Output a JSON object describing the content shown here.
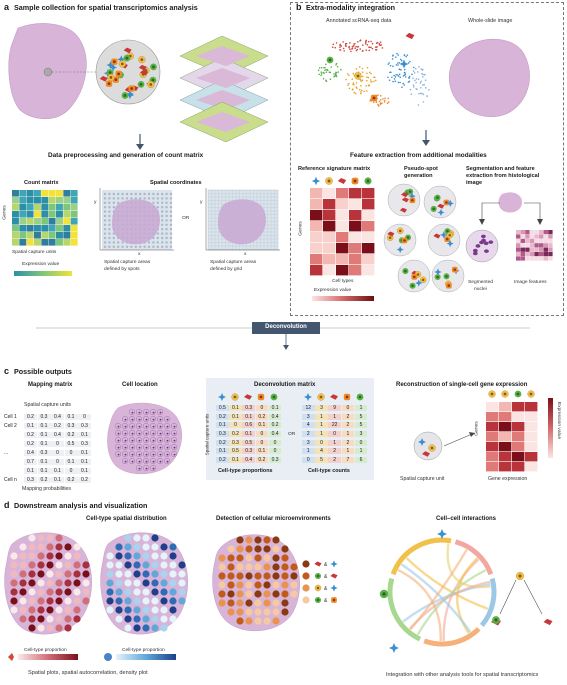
{
  "panel_a": {
    "letter": "a",
    "title": "Sample collection for spatial transcriptomics analysis",
    "step2_title": "Data preprocessing and generation of count matrix",
    "count_matrix_label": "Count matrix",
    "genes_label": "Genes",
    "capture_units_label": "Spatial capture units",
    "expression_value_label": "Expression value",
    "spatial_coords_label": "Spatial coordinates",
    "axis_x": "x",
    "axis_y": "y",
    "or_label": "OR",
    "spots_caption_1": "Spatial capture areas",
    "spots_caption_2": "defined by spots",
    "grid_caption_1": "Spatial capture areas",
    "grid_caption_2": "defined by grid"
  },
  "panel_b": {
    "letter": "b",
    "title": "Extra-modality integration",
    "scrna_label": "Annotated scRNA-seq data",
    "wsi_label": "Whole-slide image",
    "feature_title": "Feature extraction from additional modalities",
    "ref_matrix_label": "Reference signature matrix",
    "genes_label": "Genes",
    "cell_types_label": "Cell types",
    "expression_value_label": "Expression value",
    "pseudo_label_1": "Pseudo-spot",
    "pseudo_label_2": "generation",
    "seg_label_1": "Segmentation and feature",
    "seg_label_2": "extraction from histological",
    "seg_label_3": "image",
    "nuclei_label_1": "Segmented",
    "nuclei_label_2": "nuclei",
    "image_features_label": "Image features"
  },
  "deconvolution_label": "Deconvolution",
  "panel_c": {
    "letter": "c",
    "title": "Possible outputs",
    "mapping_title": "Mapping matrix",
    "mapping_units_label": "Spatial capture units",
    "mapping_rows": [
      {
        "label": "Cell 1",
        "values": [
          "0.2",
          "0.3",
          "0.4",
          "0.1",
          "0"
        ]
      },
      {
        "label": "Cell 2",
        "values": [
          "0.1",
          "0.1",
          "0.2",
          "0.3",
          "0.3"
        ]
      },
      {
        "label": "",
        "values": [
          "0.2",
          "0.1",
          "0.4",
          "0.2",
          "0.1"
        ]
      },
      {
        "label": "",
        "values": [
          "0.2",
          "0.1",
          "0",
          "0.5",
          "0.3"
        ]
      },
      {
        "label": "...",
        "values": [
          "0.4",
          "0.3",
          "0",
          "0",
          "0.1"
        ]
      },
      {
        "label": "",
        "values": [
          "0.7",
          "0.1",
          "0",
          "0.1",
          "0.1"
        ]
      },
      {
        "label": "",
        "values": [
          "0.1",
          "0.1",
          "0.1",
          "0",
          "0.1"
        ]
      },
      {
        "label": "Cell n",
        "values": [
          "0.3",
          "0.2",
          "0.1",
          "0.2",
          "0.2"
        ]
      }
    ],
    "mapping_prob_label": "Mapping probabilities",
    "cell_location_title": "Cell location",
    "decon_matrix_title": "Deconvolution matrix",
    "spatial_units_vert": "Spatial capture units",
    "proportions": [
      [
        "0.5",
        "0.1",
        "0.3",
        "0",
        "0.1"
      ],
      [
        "0.2",
        "0.1",
        "0.1",
        "0.2",
        "0.4"
      ],
      [
        "0.1",
        "0",
        "0.6",
        "0.1",
        "0.2"
      ],
      [
        "0.3",
        "0.2",
        "0.1",
        "0",
        "0.4"
      ],
      [
        "0.2",
        "0.3",
        "0.5",
        "0",
        "0"
      ],
      [
        "0.1",
        "0.5",
        "0.3",
        "0.1",
        "0"
      ],
      [
        "0.2",
        "0.1",
        "0.4",
        "0.2",
        "0.3"
      ]
    ],
    "proportions_label": "Cell-type proportions",
    "or_label": "OR",
    "counts": [
      [
        "12",
        "3",
        "9",
        "0",
        "1"
      ],
      [
        "3",
        "1",
        "1",
        "2",
        "5"
      ],
      [
        "4",
        "1",
        "22",
        "2",
        "5"
      ],
      [
        "2",
        "1",
        "0",
        "1",
        "3"
      ],
      [
        "3",
        "0",
        "1",
        "2",
        "0"
      ],
      [
        "1",
        "4",
        "2",
        "1",
        "1"
      ],
      [
        "0",
        "5",
        "2",
        "7",
        "6"
      ]
    ],
    "counts_label": "Cell-type counts",
    "reconstruction_title": "Reconstruction of single-cell gene expression",
    "capture_unit_label": "Spatial capture unit",
    "genes_label": "Genes",
    "gene_expression_label": "Gene expression",
    "expression_value_label": "Expression value"
  },
  "panel_d": {
    "letter": "d",
    "title": "Downstream analysis and visualization",
    "spatial_dist_title": "Cell-type spatial distribution",
    "proportion_label_1": "Cell-type proportion",
    "proportion_label_2": "Cell-type proportion",
    "spatial_plots_caption": "Spatial plots, spatial autocorrelation, density plot",
    "microenv_title": "Detection of cellular microenvironments",
    "amp": "&",
    "interactions_title": "Cell–cell interactions",
    "integration_caption": "Integration with other analysis tools for spatial transcriptomics"
  },
  "colors": {
    "tissue": "#d9b8d8",
    "tissue_edge": "#b08ab3",
    "panel_bg": "#e8eef3",
    "deconv_bar": "#44566e",
    "red_dark": "#8b1a1a",
    "blue_dark": "#1f3f8a",
    "orange": "#e07a2a"
  }
}
